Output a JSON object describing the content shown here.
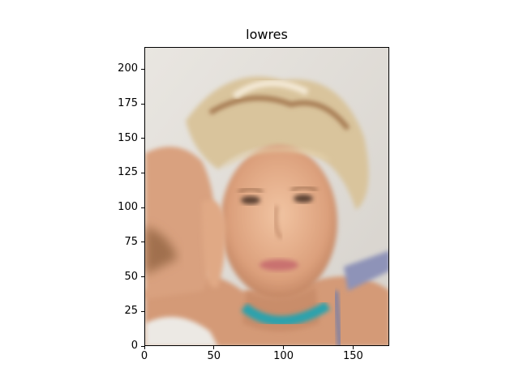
{
  "title": "lowres",
  "image": {
    "subject": "portrait-photo",
    "colors": {
      "background": "#e3dfda",
      "skin": "#d8a07e",
      "skin_light": "#eec3a0",
      "hair": "#d9c49c",
      "hair_dark": "#a3764e",
      "necklace": "#2aa2ad",
      "lips": "#c9716f",
      "eyes": "#5a4030",
      "strap": "#8e93b8"
    }
  },
  "axes": {
    "x_ticks": [
      "0",
      "50",
      "100",
      "150"
    ],
    "y_ticks": [
      "0",
      "25",
      "50",
      "75",
      "100",
      "125",
      "150",
      "175",
      "200"
    ],
    "xlim": [
      0,
      176
    ],
    "ylim": [
      0,
      216
    ]
  }
}
